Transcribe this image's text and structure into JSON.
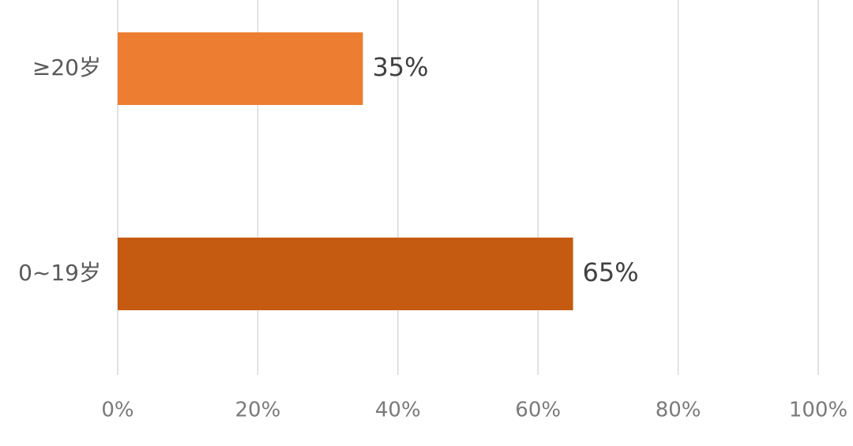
{
  "chart_data": {
    "type": "hbar",
    "categories": [
      "≥20岁",
      "0~19岁"
    ],
    "values": [
      35,
      65
    ],
    "value_labels": [
      "35%",
      "65%"
    ],
    "colors": [
      "#ED7D31",
      "#C55A11"
    ],
    "xlim": [
      0,
      100
    ],
    "xticks": [
      {
        "value": 0,
        "label": "0%"
      },
      {
        "value": 20,
        "label": "20%"
      },
      {
        "value": 40,
        "label": "40%"
      },
      {
        "value": 60,
        "label": "60%"
      },
      {
        "value": 80,
        "label": "80%"
      },
      {
        "value": 100,
        "label": "100%"
      }
    ],
    "grid": true
  }
}
